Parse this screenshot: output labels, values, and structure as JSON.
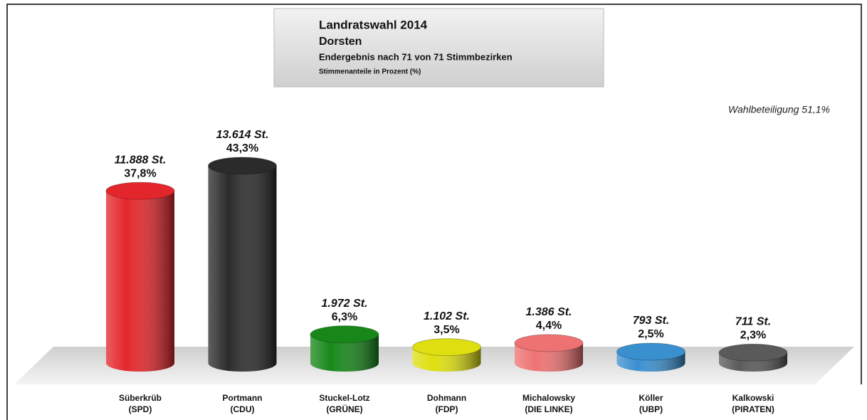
{
  "chart_data": {
    "type": "bar",
    "title": "Landratswahl 2014",
    "subtitle": "Dorsten",
    "result_note": "Endergebnis nach 71 von 71 Stimmbezirken",
    "unit_note": "Stimmenanteile in Prozent (%)",
    "annotation": "Wahlbeteiligung 51,1%",
    "categories": [
      "Süberkrüb",
      "Portmann",
      "Stuckel-Lotz",
      "Dohmann",
      "Michalowsky",
      "Köller",
      "Kalkowski"
    ],
    "parties": [
      "(SPD)",
      "(CDU)",
      "(GRÜNE)",
      "(FDP)",
      "(DIE LINKE)",
      "(UBP)",
      "(PIRATEN)"
    ],
    "values": [
      37.8,
      43.3,
      6.3,
      3.5,
      4.4,
      2.5,
      2.3
    ],
    "value_labels": [
      "37,8%",
      "43,3%",
      "6,3%",
      "3,5%",
      "4,4%",
      "2,5%",
      "2,3%"
    ],
    "vote_labels": [
      "11.888 St.",
      "13.614 St.",
      "1.972 St.",
      "1.102 St.",
      "1.386 St.",
      "793 St.",
      "711 St."
    ],
    "colors": [
      "#e3262b",
      "#2b2b2b",
      "#17871a",
      "#dede10",
      "#ee7272",
      "#3a8fcf",
      "#5a5a5a"
    ],
    "ylim": [
      0,
      45
    ]
  }
}
